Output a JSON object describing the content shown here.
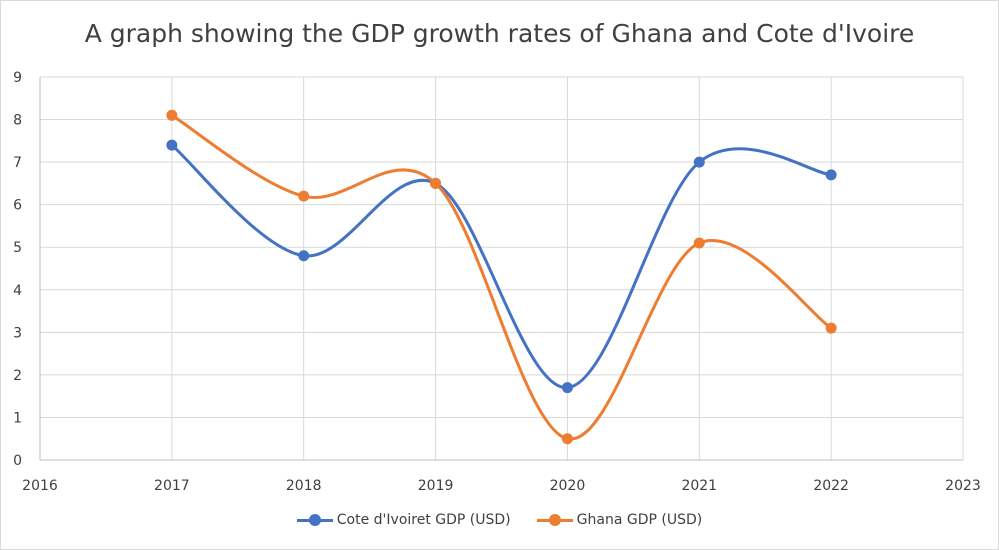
{
  "chart_data": {
    "type": "scatter",
    "title": "A graph showing the GDP growth rates of Ghana and Cote d'Ivoire",
    "xlabel": "",
    "ylabel": "",
    "xlim": [
      2016,
      2023
    ],
    "ylim": [
      0,
      9
    ],
    "x_ticks": [
      "2016",
      "2017",
      "2018",
      "2019",
      "2020",
      "2021",
      "2022",
      "2023"
    ],
    "y_ticks": [
      "0",
      "1",
      "2",
      "3",
      "4",
      "5",
      "6",
      "7",
      "8",
      "9"
    ],
    "grid": true,
    "smooth_lines": true,
    "legend_position": "bottom",
    "series": [
      {
        "name": "Cote d'Ivoiret GDP (USD)",
        "color": "#4472C4",
        "x": [
          2017,
          2018,
          2019,
          2020,
          2021,
          2022
        ],
        "y": [
          7.4,
          4.8,
          6.5,
          1.7,
          7.0,
          6.7
        ]
      },
      {
        "name": "Ghana GDP (USD)",
        "color": "#ED7D31",
        "x": [
          2017,
          2018,
          2019,
          2020,
          2021,
          2022
        ],
        "y": [
          8.1,
          6.2,
          6.5,
          0.5,
          5.1,
          3.1
        ]
      }
    ]
  }
}
